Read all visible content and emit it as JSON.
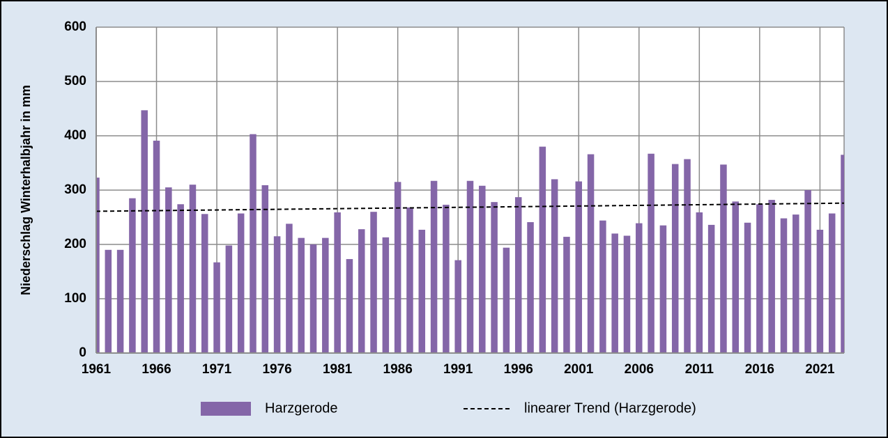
{
  "chart_data": {
    "type": "bar",
    "y_label": "Niederschlag Winterhalbjahr in mm",
    "x": [
      1961,
      1962,
      1963,
      1964,
      1965,
      1966,
      1967,
      1968,
      1969,
      1970,
      1971,
      1972,
      1973,
      1974,
      1975,
      1976,
      1977,
      1978,
      1979,
      1980,
      1981,
      1982,
      1983,
      1984,
      1985,
      1986,
      1987,
      1988,
      1989,
      1990,
      1991,
      1992,
      1993,
      1994,
      1995,
      1996,
      1997,
      1998,
      1999,
      2000,
      2001,
      2002,
      2003,
      2004,
      2005,
      2006,
      2007,
      2008,
      2009,
      2010,
      2011,
      2012,
      2013,
      2014,
      2015,
      2016,
      2017,
      2018,
      2019,
      2020,
      2021,
      2022,
      2023
    ],
    "series": [
      {
        "name": "Harzgerode",
        "color": "#8466a8",
        "values": [
          323,
          190,
          190,
          285,
          447,
          391,
          305,
          274,
          310,
          256,
          167,
          198,
          257,
          403,
          309,
          215,
          238,
          212,
          200,
          212,
          259,
          173,
          228,
          260,
          213,
          315,
          268,
          227,
          317,
          273,
          171,
          317,
          308,
          278,
          194,
          287,
          241,
          380,
          320,
          214,
          316,
          366,
          244,
          220,
          216,
          239,
          367,
          235,
          348,
          357,
          259,
          236,
          347,
          279,
          240,
          274,
          282,
          248,
          255,
          300,
          227,
          257,
          365
        ]
      },
      {
        "name": "linearer Trend (Harzgerode)",
        "type": "line",
        "color": "#000000",
        "dashed": true,
        "x": [
          1961,
          2023
        ],
        "values": [
          261,
          276
        ]
      }
    ],
    "xlim": [
      1961,
      2023
    ],
    "xticks": [
      1961,
      1966,
      1971,
      1976,
      1981,
      1986,
      1991,
      1996,
      2001,
      2006,
      2011,
      2016,
      2021
    ],
    "ylim": [
      0,
      600
    ],
    "yticks": [
      0,
      100,
      200,
      300,
      400,
      500,
      600
    ],
    "grid": true
  }
}
